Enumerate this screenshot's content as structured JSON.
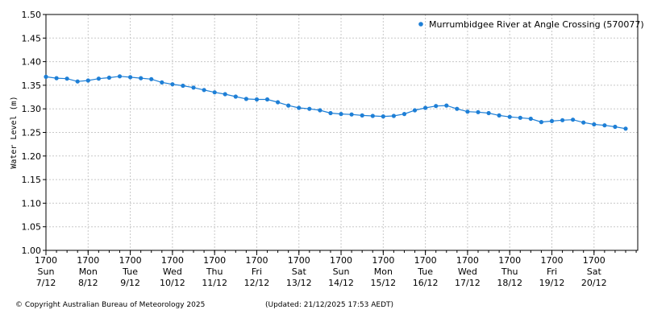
{
  "colors": {
    "series": "#1E7FD6",
    "grid": "#c8c8c8",
    "axis": "#000000"
  },
  "chart_data": {
    "type": "line",
    "title": "",
    "xlabel": "",
    "ylabel": "Water Level (m)",
    "ylim": [
      1.0,
      1.5
    ],
    "yticks": [
      "1.00",
      "1.05",
      "1.10",
      "1.15",
      "1.20",
      "1.25",
      "1.30",
      "1.35",
      "1.40",
      "1.45",
      "1.50"
    ],
    "grid": true,
    "legend_position": "top-right",
    "x_range": [
      "2025-12-07 17:00",
      "2025-12-21 17:53"
    ],
    "xticks": [
      {
        "time": "1700",
        "day": "Sun",
        "date": "7/12"
      },
      {
        "time": "1700",
        "day": "Mon",
        "date": "8/12"
      },
      {
        "time": "1700",
        "day": "Tue",
        "date": "9/12"
      },
      {
        "time": "1700",
        "day": "Wed",
        "date": "10/12"
      },
      {
        "time": "1700",
        "day": "Thu",
        "date": "11/12"
      },
      {
        "time": "1700",
        "day": "Fri",
        "date": "12/12"
      },
      {
        "time": "1700",
        "day": "Sat",
        "date": "13/12"
      },
      {
        "time": "1700",
        "day": "Sun",
        "date": "14/12"
      },
      {
        "time": "1700",
        "day": "Mon",
        "date": "15/12"
      },
      {
        "time": "1700",
        "day": "Tue",
        "date": "16/12"
      },
      {
        "time": "1700",
        "day": "Wed",
        "date": "17/12"
      },
      {
        "time": "1700",
        "day": "Thu",
        "date": "18/12"
      },
      {
        "time": "1700",
        "day": "Fri",
        "date": "19/12"
      },
      {
        "time": "1700",
        "day": "Sat",
        "date": "20/12"
      }
    ],
    "series": [
      {
        "name": "Murrumbidgee River at Angle Crossing (570077)",
        "points": [
          [
            "2025-12-07 17:00",
            1.368
          ],
          [
            "2025-12-07 23:00",
            1.365
          ],
          [
            "2025-12-08 05:00",
            1.364
          ],
          [
            "2025-12-08 11:00",
            1.358
          ],
          [
            "2025-12-08 17:00",
            1.36
          ],
          [
            "2025-12-08 23:00",
            1.364
          ],
          [
            "2025-12-09 05:00",
            1.366
          ],
          [
            "2025-12-09 11:00",
            1.369
          ],
          [
            "2025-12-09 17:00",
            1.367
          ],
          [
            "2025-12-09 23:00",
            1.365
          ],
          [
            "2025-12-10 05:00",
            1.363
          ],
          [
            "2025-12-10 11:00",
            1.356
          ],
          [
            "2025-12-10 17:00",
            1.352
          ],
          [
            "2025-12-10 23:00",
            1.349
          ],
          [
            "2025-12-11 05:00",
            1.345
          ],
          [
            "2025-12-11 11:00",
            1.34
          ],
          [
            "2025-12-11 17:00",
            1.335
          ],
          [
            "2025-12-11 23:00",
            1.331
          ],
          [
            "2025-12-12 05:00",
            1.326
          ],
          [
            "2025-12-12 11:00",
            1.321
          ],
          [
            "2025-12-12 17:00",
            1.32
          ],
          [
            "2025-12-12 23:00",
            1.32
          ],
          [
            "2025-12-13 05:00",
            1.314
          ],
          [
            "2025-12-13 11:00",
            1.307
          ],
          [
            "2025-12-13 17:00",
            1.302
          ],
          [
            "2025-12-13 23:00",
            1.3
          ],
          [
            "2025-12-14 05:00",
            1.297
          ],
          [
            "2025-12-14 11:00",
            1.291
          ],
          [
            "2025-12-14 17:00",
            1.289
          ],
          [
            "2025-12-14 23:00",
            1.288
          ],
          [
            "2025-12-15 05:00",
            1.286
          ],
          [
            "2025-12-15 11:00",
            1.285
          ],
          [
            "2025-12-15 17:00",
            1.284
          ],
          [
            "2025-12-15 23:00",
            1.285
          ],
          [
            "2025-12-16 05:00",
            1.289
          ],
          [
            "2025-12-16 11:00",
            1.297
          ],
          [
            "2025-12-16 17:00",
            1.302
          ],
          [
            "2025-12-16 23:00",
            1.306
          ],
          [
            "2025-12-17 05:00",
            1.307
          ],
          [
            "2025-12-17 11:00",
            1.3
          ],
          [
            "2025-12-17 17:00",
            1.294
          ],
          [
            "2025-12-17 23:00",
            1.293
          ],
          [
            "2025-12-18 05:00",
            1.291
          ],
          [
            "2025-12-18 11:00",
            1.286
          ],
          [
            "2025-12-18 17:00",
            1.283
          ],
          [
            "2025-12-18 23:00",
            1.281
          ],
          [
            "2025-12-19 05:00",
            1.279
          ],
          [
            "2025-12-19 11:00",
            1.272
          ],
          [
            "2025-12-19 17:00",
            1.274
          ],
          [
            "2025-12-19 23:00",
            1.276
          ],
          [
            "2025-12-20 05:00",
            1.277
          ],
          [
            "2025-12-20 11:00",
            1.271
          ],
          [
            "2025-12-20 17:00",
            1.267
          ],
          [
            "2025-12-20 23:00",
            1.265
          ],
          [
            "2025-12-21 05:00",
            1.262
          ],
          [
            "2025-12-21 11:00",
            1.258
          ]
        ]
      }
    ]
  },
  "footer": {
    "copyright": "© Copyright Australian Bureau of Meteorology 2025",
    "updated": "(Updated: 21/12/2025 17:53 AEDT)"
  }
}
